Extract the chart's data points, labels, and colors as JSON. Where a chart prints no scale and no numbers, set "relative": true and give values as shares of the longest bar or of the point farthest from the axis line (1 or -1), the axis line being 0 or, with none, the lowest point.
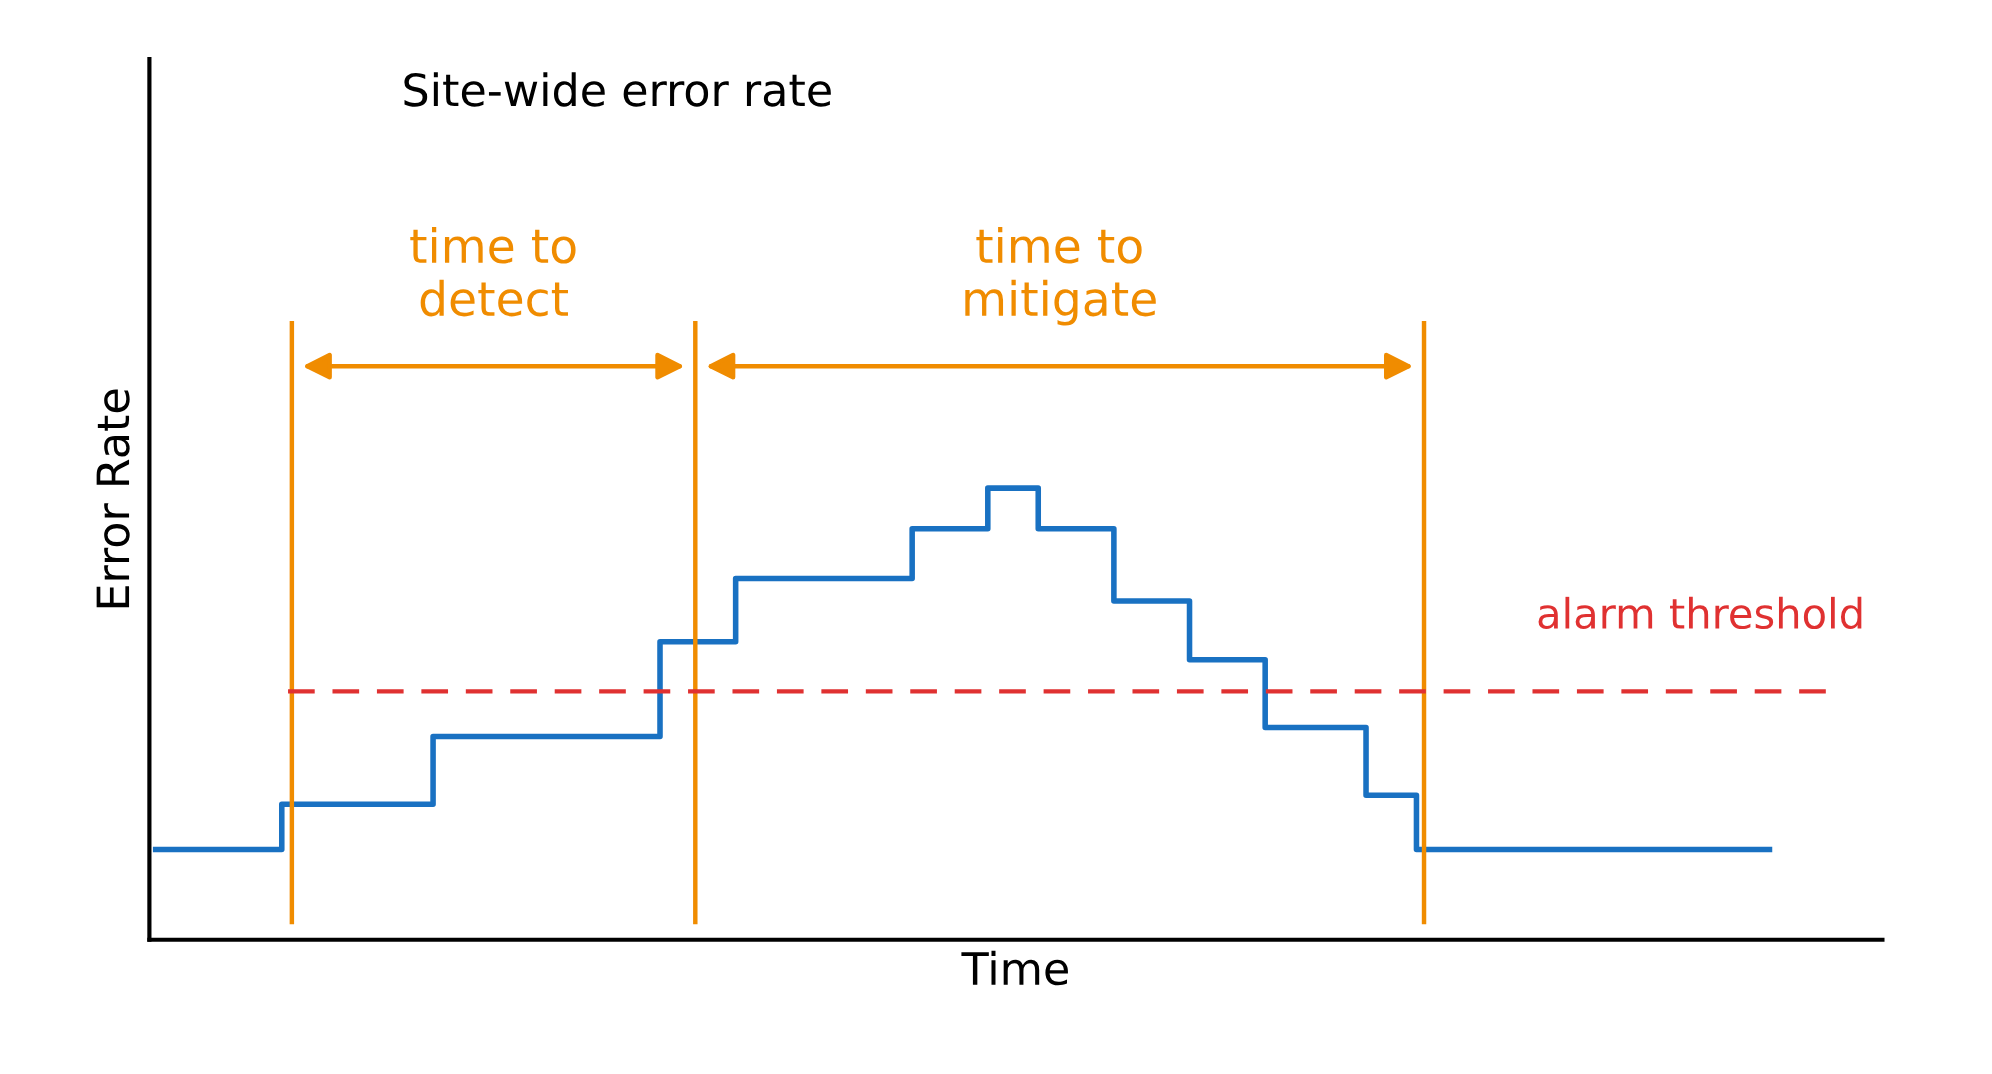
{
  "chart_data": {
    "type": "step",
    "title": "Site-wide error rate",
    "xlabel": "Time",
    "ylabel": "Error Rate",
    "relative": true,
    "tick_labels": false,
    "legend": false,
    "marker": "none",
    "line_style": "solid",
    "annotations": [
      "time to\ndetect",
      "time to\nmitigate"
    ],
    "categories": [
      null,
      null,
      null,
      null,
      null,
      null,
      null,
      null,
      null,
      null,
      null,
      null,
      null,
      null,
      null,
      null,
      null,
      null,
      null,
      null,
      null,
      null,
      null,
      null,
      null,
      null,
      null,
      null,
      null,
      null,
      null,
      null,
      null,
      null,
      null,
      null,
      null,
      null,
      null,
      null,
      null,
      null,
      null,
      null,
      null,
      null,
      null,
      null,
      null,
      null,
      null,
      null,
      null,
      null,
      null,
      null,
      null,
      null,
      null,
      null,
      null,
      null,
      null,
      null,
      null
    ],
    "series": [
      {
        "color": "#1971c2",
        "values": [
          0.2,
          0.2,
          0.2,
          0.2,
          0.2,
          0.3,
          0.3,
          0.3,
          0.3,
          0.3,
          0.3,
          0.45,
          0.45,
          0.45,
          0.45,
          0.45,
          0.45,
          0.45,
          0.45,
          0.45,
          0.66,
          0.66,
          0.66,
          0.8,
          0.8,
          0.8,
          0.8,
          0.8,
          0.8,
          0.8,
          0.91,
          0.91,
          0.91,
          1.0,
          1.0,
          0.91,
          0.91,
          0.91,
          0.75,
          0.75,
          0.75,
          0.62,
          0.62,
          0.62,
          0.47,
          0.47,
          0.47,
          0.47,
          0.32,
          0.32,
          0.2,
          0.2,
          0.2,
          0.2,
          0.2,
          0.2,
          0.2,
          0.2,
          0.2,
          0.2,
          0.2,
          0.2,
          0.2,
          0.2,
          0.2
        ]
      }
    ],
    "ref_lines": [
      {
        "axis": "y",
        "value": 0.55,
        "label": "alarm threshold",
        "color": "#e03131",
        "line_style": "dashed"
      }
    ]
  }
}
